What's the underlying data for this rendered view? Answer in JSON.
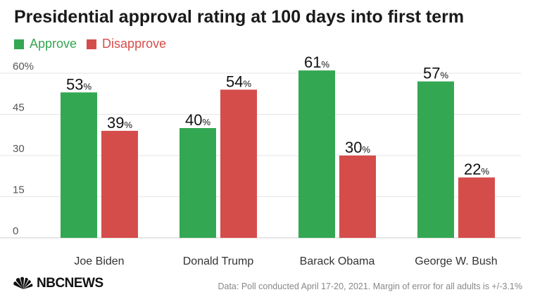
{
  "title": "Presidential approval rating at 100 days into first term",
  "legend": {
    "approve": "Approve",
    "disapprove": "Disapprove"
  },
  "colors": {
    "approve": "#34a753",
    "disapprove": "#d54d4a"
  },
  "chart_data": {
    "type": "bar",
    "categories": [
      "Joe Biden",
      "Donald Trump",
      "Barack Obama",
      "George W. Bush"
    ],
    "series": [
      {
        "name": "Approve",
        "values": [
          53,
          40,
          61,
          57
        ]
      },
      {
        "name": "Disapprove",
        "values": [
          39,
          54,
          30,
          22
        ]
      }
    ],
    "value_suffix": "%",
    "yticks": [
      "0",
      "15",
      "30",
      "45",
      "60%"
    ],
    "ylim": [
      0,
      60
    ],
    "grid": true,
    "legend_position": "top-left"
  },
  "footer": {
    "logo_text": "NBCNEWS",
    "source": "Data: Poll conducted April 17-20, 2021. Margin of error for all adults is +/-3.1%"
  }
}
